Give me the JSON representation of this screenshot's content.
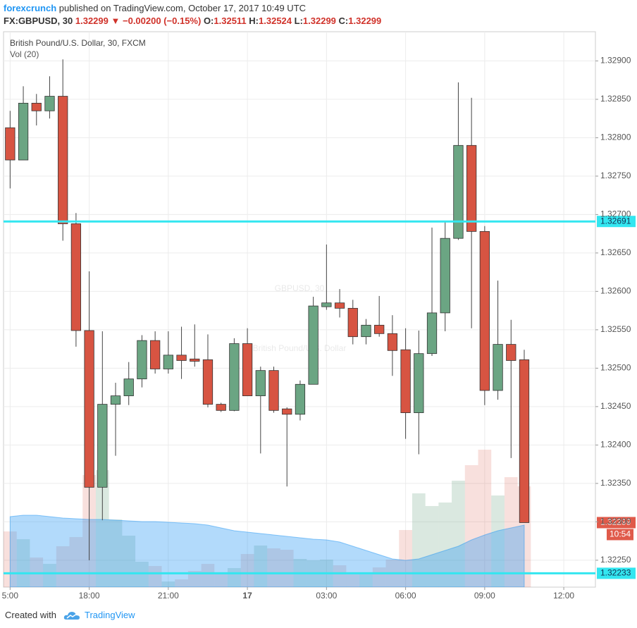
{
  "header": {
    "author": "forexcrunch",
    "published": "published on TradingView.com, October 17, 2017 10:49 UTC",
    "symbol": "FX:GBPUSD, 30",
    "last": "1.32299",
    "arrow": "▼",
    "change": "−0.00200 (−0.15%)",
    "ohlc": [
      {
        "key": "O:",
        "value": "1.32511"
      },
      {
        "key": "H:",
        "value": "1.32524"
      },
      {
        "key": "L:",
        "value": "1.32299"
      },
      {
        "key": "C:",
        "value": "1.32299"
      }
    ]
  },
  "chart_data": {
    "type": "candlestick",
    "title": "British Pound/U.S. Dollar, 30, FXCM",
    "volume_label": "Vol (20)",
    "watermark": [
      "GBPUSD, 30",
      "British Pound/U.S. Dollar"
    ],
    "up_color": "#6ba583",
    "down_color": "#d75442",
    "volume_ma_color": "#2196f3",
    "grid": true,
    "x": [
      0,
      1,
      2,
      3,
      4,
      5,
      6,
      7,
      8,
      9,
      10,
      11,
      12,
      13,
      14,
      15,
      16,
      17,
      18,
      19,
      20,
      21,
      22,
      23,
      24,
      25,
      26,
      27,
      28,
      29,
      30,
      31,
      32,
      33,
      34,
      35,
      36,
      37,
      38,
      39
    ],
    "open": [
      1.32813,
      1.32771,
      1.32845,
      1.32835,
      1.32854,
      1.32688,
      1.32549,
      1.32345,
      1.32453,
      1.32464,
      1.32486,
      1.32536,
      1.32499,
      1.32517,
      1.32512,
      1.32511,
      1.32453,
      1.32445,
      1.32532,
      1.32464,
      1.32497,
      1.32447,
      1.3244,
      1.32479,
      1.3258,
      1.32585,
      1.32578,
      1.32541,
      1.32556,
      1.32545,
      1.32524,
      1.32442,
      1.32519,
      1.32572,
      1.32669,
      1.3279,
      1.32678,
      1.32471,
      1.32531,
      1.32511
    ],
    "high": [
      1.32835,
      1.32867,
      1.32857,
      1.3288,
      1.32902,
      1.32702,
      1.32626,
      1.32548,
      1.32481,
      1.32508,
      1.32543,
      1.32548,
      1.32548,
      1.32554,
      1.32557,
      1.32544,
      1.32455,
      1.32539,
      1.32552,
      1.32502,
      1.32502,
      1.32449,
      1.32484,
      1.32593,
      1.32661,
      1.32603,
      1.32589,
      1.32564,
      1.32594,
      1.32569,
      1.32552,
      1.32549,
      1.32683,
      1.3269,
      1.32872,
      1.32852,
      1.32685,
      1.32614,
      1.32563,
      1.32524
    ],
    "low": [
      1.32734,
      1.32771,
      1.32816,
      1.32825,
      1.32666,
      1.32528,
      1.3225,
      1.32302,
      1.32386,
      1.32452,
      1.32475,
      1.32493,
      1.32493,
      1.32486,
      1.32502,
      1.32449,
      1.32443,
      1.32444,
      1.32464,
      1.32389,
      1.32442,
      1.32346,
      1.32432,
      1.32479,
      1.32576,
      1.32566,
      1.32531,
      1.32531,
      1.32541,
      1.3249,
      1.32408,
      1.32388,
      1.32516,
      1.32548,
      1.32667,
      1.32552,
      1.32452,
      1.32459,
      1.32383,
      1.32299
    ],
    "close": [
      1.32771,
      1.32845,
      1.32835,
      1.32854,
      1.32688,
      1.32549,
      1.32345,
      1.32453,
      1.32464,
      1.32486,
      1.32536,
      1.32499,
      1.32517,
      1.3251,
      1.32509,
      1.32453,
      1.32445,
      1.32532,
      1.32464,
      1.32497,
      1.32445,
      1.3244,
      1.32479,
      1.32581,
      1.32585,
      1.32578,
      1.32541,
      1.32556,
      1.32545,
      1.32523,
      1.32442,
      1.32519,
      1.32572,
      1.32669,
      1.3279,
      1.32678,
      1.32471,
      1.32531,
      1.3251,
      1.32299
    ],
    "volume": [
      79,
      68,
      42,
      33,
      58,
      71,
      159,
      166,
      96,
      73,
      36,
      30,
      8,
      11,
      23,
      33,
      21,
      27,
      47,
      59,
      55,
      53,
      40,
      38,
      39,
      31,
      18,
      18,
      28,
      39,
      81,
      133,
      115,
      120,
      151,
      173,
      195,
      130,
      156,
      143
    ],
    "volume_ma": [
      100,
      102,
      102,
      100,
      98,
      97,
      96,
      96,
      95,
      94,
      93,
      93,
      92,
      91,
      90,
      88,
      84,
      80,
      78,
      76,
      74,
      72,
      70,
      68,
      67,
      64,
      58,
      52,
      46,
      40,
      38,
      40,
      46,
      52,
      58,
      67,
      74,
      80,
      84,
      88
    ],
    "xlim": [
      -0.5,
      44.4
    ],
    "ylim": [
      1.32215,
      1.32938
    ],
    "xticks": [
      {
        "value": 0,
        "label": "5:00"
      },
      {
        "value": 6,
        "label": "18:00"
      },
      {
        "value": 12,
        "label": "21:00"
      },
      {
        "value": 18,
        "label": "17"
      },
      {
        "value": 24,
        "label": "03:00"
      },
      {
        "value": 30,
        "label": "06:00"
      },
      {
        "value": 36,
        "label": "09:00"
      },
      {
        "value": 42,
        "label": "12:00"
      }
    ],
    "yticks": [
      {
        "value": 1.329,
        "label": "1.32900"
      },
      {
        "value": 1.3285,
        "label": "1.32850"
      },
      {
        "value": 1.328,
        "label": "1.32800"
      },
      {
        "value": 1.3275,
        "label": "1.32750"
      },
      {
        "value": 1.327,
        "label": "1.32700"
      },
      {
        "value": 1.3265,
        "label": "1.32650"
      },
      {
        "value": 1.326,
        "label": "1.32600"
      },
      {
        "value": 1.3255,
        "label": "1.32550"
      },
      {
        "value": 1.325,
        "label": "1.32500"
      },
      {
        "value": 1.3245,
        "label": "1.32450"
      },
      {
        "value": 1.324,
        "label": "1.32400"
      },
      {
        "value": 1.3235,
        "label": "1.32350"
      },
      {
        "value": 1.323,
        "label": "1.32300"
      },
      {
        "value": 1.3225,
        "label": "1.32250"
      }
    ],
    "hlines": [
      {
        "value": 1.32691,
        "label": "1.32691",
        "color": "#33e6f0"
      },
      {
        "value": 1.32233,
        "label": "1.32233",
        "color": "#33e6f0"
      }
    ],
    "last_price": {
      "value": 1.32299,
      "label": "1.32299",
      "countdown": "10:54",
      "color": "#e05a4a"
    }
  },
  "footer": {
    "created": "Created with",
    "brand": "TradingView"
  }
}
